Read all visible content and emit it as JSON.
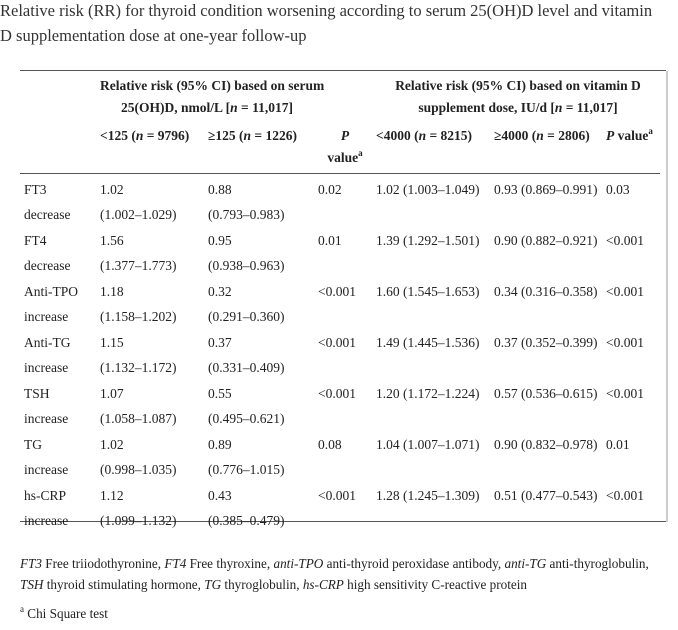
{
  "caption": "Relative risk (RR) for thyroid condition worsening according to serum 25(OH)D level and vitamin D supplementation dose at one-year follow-up",
  "header": {
    "group1_line1": "Relative risk (95% CI) based on serum",
    "group1_line2_pre": "25(OH)D, nmol/L [",
    "n_symbol": "n",
    "group1_line2_post": " = 11,017]",
    "group2_line1": "Relative risk (95% CI) based on vitamin D",
    "group2_line2_pre": "supplement dose, IU/d [",
    "group2_line2_post": " = 11,017]",
    "col_lt125_pre": "<125 (",
    "col_lt125_post": " = 9796)",
    "col_ge125_pre": "≥125 (",
    "col_ge125_post": " = 1226)",
    "p_label": "P",
    "p_value_word": "value",
    "p_sup": "a",
    "col_lt4000_pre": "<4000 (",
    "col_lt4000_post": " = 8215)",
    "col_ge4000_pre": "≥4000 (",
    "col_ge4000_post": " = 2806)",
    "p_value_full_pre": "P",
    "p_value_full_post": " value"
  },
  "rows": [
    {
      "name": "FT3",
      "change": "decrease",
      "lt125": "1.02",
      "lt125_ci": "(1.002–1.029)",
      "ge125": "0.88",
      "ge125_ci": "(0.793–0.983)",
      "p1": "0.02",
      "lt4000": "1.02 (1.003–1.049)",
      "ge4000": "0.93 (0.869–0.991)",
      "p2": "0.03"
    },
    {
      "name": "FT4",
      "change": "decrease",
      "lt125": "1.56",
      "lt125_ci": "(1.377–1.773)",
      "ge125": "0.95",
      "ge125_ci": "(0.938–0.963)",
      "p1": "0.01",
      "lt4000": "1.39 (1.292–1.501)",
      "ge4000": "0.90 (0.882–0.921)",
      "p2": "<0.001"
    },
    {
      "name": "Anti-TPO",
      "change": "increase",
      "lt125": "1.18",
      "lt125_ci": "(1.158–1.202)",
      "ge125": "0.32",
      "ge125_ci": "(0.291–0.360)",
      "p1": "<0.001",
      "lt4000": "1.60 (1.545–1.653)",
      "ge4000": "0.34 (0.316–0.358)",
      "p2": "<0.001"
    },
    {
      "name": "Anti-TG",
      "change": "increase",
      "lt125": "1.15",
      "lt125_ci": "(1.132–1.172)",
      "ge125": "0.37",
      "ge125_ci": "(0.331–0.409)",
      "p1": "<0.001",
      "lt4000": "1.49 (1.445–1.536)",
      "ge4000": "0.37 (0.352–0.399)",
      "p2": "<0.001"
    },
    {
      "name": "TSH",
      "change": "increase",
      "lt125": "1.07",
      "lt125_ci": "(1.058–1.087)",
      "ge125": "0.55",
      "ge125_ci": "(0.495–0.621)",
      "p1": "<0.001",
      "lt4000": "1.20 (1.172–1.224)",
      "ge4000": "0.57 (0.536–0.615)",
      "p2": "<0.001"
    },
    {
      "name": "TG",
      "change": "increase",
      "lt125": "1.02",
      "lt125_ci": "(0.998–1.035)",
      "ge125": "0.89",
      "ge125_ci": "(0.776–1.015)",
      "p1": "0.08",
      "lt4000": "1.04 (1.007–1.071)",
      "ge4000": "0.90 (0.832–0.978)",
      "p2": "0.01"
    },
    {
      "name": "hs-CRP",
      "change": "increase",
      "lt125": "1.12",
      "lt125_ci": "(1.099–1.132)",
      "ge125": "0.43",
      "ge125_ci": "(0.385–0.479)",
      "p1": "<0.001",
      "lt4000": "1.28 (1.245–1.309)",
      "ge4000": "0.51 (0.477–0.543)",
      "p2": "<0.001"
    }
  ],
  "footnotes": {
    "abbr": [
      {
        "term": "FT3",
        "def": " Free triiodothyronine, "
      },
      {
        "term": "FT4",
        "def": " Free thyroxine, "
      },
      {
        "term": "anti-TPO",
        "def": " anti-thyroid peroxidase antibody, "
      },
      {
        "term": "anti-TG",
        "def": " anti-thyroglobulin, "
      },
      {
        "term": "TSH",
        "def": " thyroid stimulating hormone, "
      },
      {
        "term": "TG",
        "def": " thyroglobulin, "
      },
      {
        "term": "hs-CRP",
        "def": " high sensitivity C-reactive protein"
      }
    ],
    "chi_sup": "a",
    "chi_text": " Chi Square test"
  }
}
